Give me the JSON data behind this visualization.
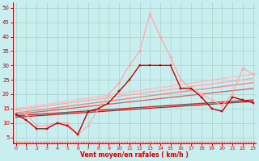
{
  "background_color": "#c8eef0",
  "grid_color": "#b0d8cc",
  "xlabel": "Vent moyen/en rafales ( km/h )",
  "xlabel_color": "#cc0000",
  "tick_color": "#cc0000",
  "x_ticks": [
    0,
    1,
    2,
    3,
    4,
    5,
    6,
    7,
    8,
    9,
    10,
    11,
    12,
    13,
    14,
    15,
    16,
    17,
    18,
    19,
    20,
    21,
    22,
    23
  ],
  "ylim": [
    3,
    52
  ],
  "xlim": [
    -0.3,
    23.3
  ],
  "yticks": [
    5,
    10,
    15,
    20,
    25,
    30,
    35,
    40,
    45,
    50
  ],
  "series": [
    {
      "x": [
        0,
        1,
        2,
        3,
        4,
        5,
        6,
        7,
        8,
        9,
        10,
        11,
        12,
        13,
        14,
        15,
        16,
        17,
        18,
        19,
        20,
        21,
        22,
        23
      ],
      "y": [
        13,
        11,
        8,
        8,
        10,
        9,
        6,
        14,
        15,
        17,
        21,
        25,
        30,
        30,
        30,
        30,
        22,
        22,
        19,
        15,
        14,
        19,
        18,
        17
      ],
      "color": "#cc0000",
      "marker": "s",
      "markersize": 2.0,
      "linewidth": 1.0,
      "zorder": 5
    },
    {
      "x": [
        0,
        1,
        2,
        3,
        4,
        5,
        6,
        7,
        8,
        9,
        10,
        11,
        12,
        13,
        14,
        15,
        16,
        17,
        18,
        19,
        20,
        21,
        22,
        23
      ],
      "y": [
        15,
        13,
        9,
        9,
        10,
        10,
        6,
        9,
        15,
        20,
        24,
        30,
        35,
        48,
        40,
        33,
        25,
        22,
        20,
        18,
        16,
        20,
        29,
        27
      ],
      "color": "#ffaaaa",
      "marker": "D",
      "markersize": 2.0,
      "linewidth": 0.9,
      "zorder": 4
    },
    {
      "x": [
        0,
        23
      ],
      "y": [
        15.0,
        27.0
      ],
      "color": "#ffbbbb",
      "marker": null,
      "markersize": 0,
      "linewidth": 1.0,
      "zorder": 2
    },
    {
      "x": [
        0,
        23
      ],
      "y": [
        14.5,
        25.5
      ],
      "color": "#ffaaaa",
      "marker": null,
      "markersize": 0,
      "linewidth": 1.0,
      "zorder": 2
    },
    {
      "x": [
        0,
        23
      ],
      "y": [
        13.5,
        24.0
      ],
      "color": "#ee8888",
      "marker": null,
      "markersize": 0,
      "linewidth": 1.0,
      "zorder": 2
    },
    {
      "x": [
        0,
        23
      ],
      "y": [
        13.0,
        22.0
      ],
      "color": "#dd6666",
      "marker": null,
      "markersize": 0,
      "linewidth": 1.0,
      "zorder": 2
    },
    {
      "x": [
        0,
        23
      ],
      "y": [
        12.5,
        18.0
      ],
      "color": "#bb3333",
      "marker": null,
      "markersize": 0,
      "linewidth": 1.0,
      "zorder": 2
    },
    {
      "x": [
        0,
        23
      ],
      "y": [
        12.0,
        17.5
      ],
      "color": "#aa2222",
      "marker": null,
      "markersize": 0,
      "linewidth": 0.9,
      "zorder": 2
    }
  ],
  "dashed_line_y": 3.5,
  "dashed_color": "#cc0000"
}
